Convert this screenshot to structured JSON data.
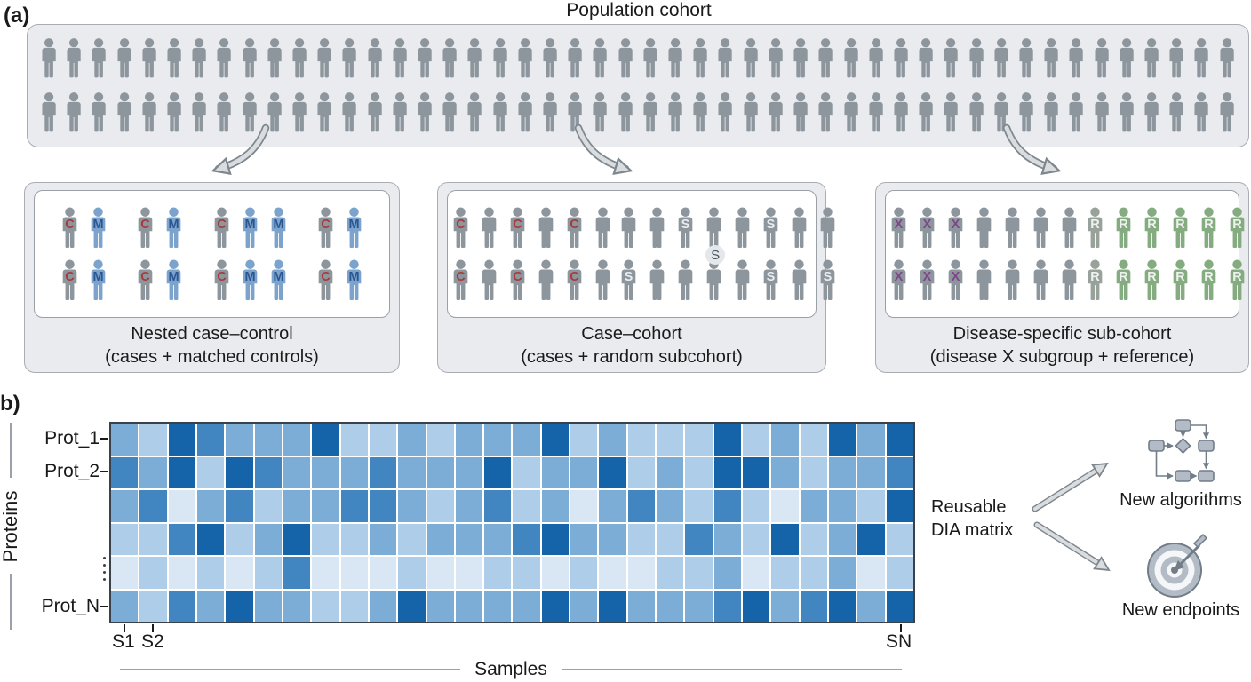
{
  "figure": {
    "panel_a_label": "(a)",
    "panel_b_label": "b)",
    "population": {
      "title": "Population cohort",
      "rows": 2,
      "per_row": 48
    },
    "subpanels": [
      {
        "caption1": "Nested case–control",
        "caption2": "(cases + matched controls)",
        "clusters": [
          {
            "rows": [
              [
                "C",
                "M"
              ],
              [
                "C",
                "M"
              ]
            ]
          },
          {
            "rows": [
              [
                "C",
                "M"
              ],
              [
                "C",
                "M"
              ]
            ]
          },
          {
            "rows": [
              [
                "C",
                "M",
                "M"
              ],
              [
                "C",
                "M",
                "M"
              ]
            ]
          },
          {
            "rows": [
              [
                "C",
                "M"
              ],
              [
                "C",
                "M"
              ]
            ]
          }
        ]
      },
      {
        "caption1": "Case–cohort",
        "caption2": "(cases + random subcohort)",
        "clusters": [
          {
            "rows": [
              [
                "C",
                "P",
                "C",
                "P",
                "C",
                "P"
              ],
              [
                "C",
                "P",
                "C",
                "P",
                "C",
                "P"
              ]
            ]
          },
          {
            "rows": [
              [
                "P",
                "P",
                "S",
                "P",
                "P",
                "S",
                "P",
                "P"
              ],
              [
                "S",
                "P",
                "P",
                "P",
                "P",
                "S",
                "P",
                "S"
              ]
            ],
            "badge": "S"
          }
        ]
      },
      {
        "caption1": "Disease-specific sub-cohort",
        "caption2": "(disease X subgroup + reference)",
        "clusters": [
          {
            "rows": [
              [
                "X",
                "X",
                "X",
                "P",
                "P",
                "P",
                "P"
              ],
              [
                "X",
                "X",
                "X",
                "P",
                "P",
                "P",
                "P"
              ]
            ]
          },
          {
            "rows": [
              [
                "G",
                "R",
                "R",
                "R",
                "R",
                "R"
              ],
              [
                "G",
                "R",
                "R",
                "R",
                "R",
                "R"
              ]
            ]
          }
        ]
      }
    ],
    "person_styles": {
      "P": {
        "body": "#8d959d",
        "letter": "",
        "letter_color": ""
      },
      "C": {
        "body": "#8d959d",
        "letter": "C",
        "letter_color": "#a93a3a"
      },
      "M": {
        "body": "#7ba3cc",
        "letter": "M",
        "letter_color": "#2b5591"
      },
      "S": {
        "body": "#8d959d",
        "letter": "S",
        "letter_color": "#e9edf0"
      },
      "X": {
        "body": "#8d959d",
        "letter": "X",
        "letter_color": "#7d4788"
      },
      "R": {
        "body": "#85ac81",
        "letter": "R",
        "letter_color": "#eef2ee"
      },
      "G": {
        "body": "#98a29b",
        "letter": "R",
        "letter_color": "#eef2ee"
      }
    },
    "heatmap": {
      "type": "heatmap",
      "ylabel": "Proteins",
      "xlabel": "Samples",
      "row_tick_labels": [
        "Prot_1",
        "Prot_2",
        "Prot_N"
      ],
      "col_tick_labels": [
        "S1",
        "S2",
        "SN"
      ],
      "palette": [
        "#d9e7f4",
        "#aecde8",
        "#7badd6",
        "#4186c0",
        "#1563a8"
      ],
      "matrix": [
        [
          2,
          1,
          4,
          3,
          2,
          2,
          2,
          4,
          1,
          1,
          2,
          1,
          2,
          2,
          2,
          4,
          1,
          2,
          1,
          1,
          1,
          4,
          1,
          2,
          1,
          4,
          2,
          4
        ],
        [
          3,
          2,
          4,
          1,
          4,
          3,
          2,
          2,
          2,
          3,
          2,
          2,
          2,
          4,
          1,
          2,
          2,
          4,
          1,
          2,
          1,
          4,
          4,
          2,
          1,
          2,
          2,
          3
        ],
        [
          2,
          3,
          0,
          2,
          3,
          1,
          2,
          2,
          3,
          3,
          2,
          1,
          2,
          3,
          1,
          2,
          0,
          2,
          3,
          2,
          1,
          3,
          1,
          0,
          2,
          2,
          1,
          4
        ],
        [
          1,
          1,
          3,
          4,
          1,
          2,
          4,
          1,
          1,
          2,
          1,
          2,
          2,
          2,
          3,
          4,
          2,
          2,
          1,
          1,
          3,
          2,
          1,
          4,
          1,
          2,
          4,
          1
        ],
        [
          0,
          1,
          0,
          1,
          0,
          1,
          3,
          0,
          0,
          0,
          1,
          0,
          0,
          1,
          1,
          0,
          1,
          0,
          0,
          1,
          1,
          2,
          0,
          1,
          1,
          2,
          0,
          1
        ],
        [
          2,
          1,
          3,
          2,
          4,
          2,
          2,
          1,
          1,
          2,
          4,
          2,
          2,
          2,
          2,
          4,
          2,
          4,
          2,
          2,
          2,
          3,
          4,
          2,
          3,
          4,
          2,
          4
        ]
      ]
    },
    "outputs": {
      "source_line1": "Reusable",
      "source_line2": "DIA matrix",
      "items": [
        {
          "label": "New algorithms",
          "icon": "flowchart-icon"
        },
        {
          "label": "New endpoints",
          "icon": "target-icon"
        }
      ]
    }
  }
}
